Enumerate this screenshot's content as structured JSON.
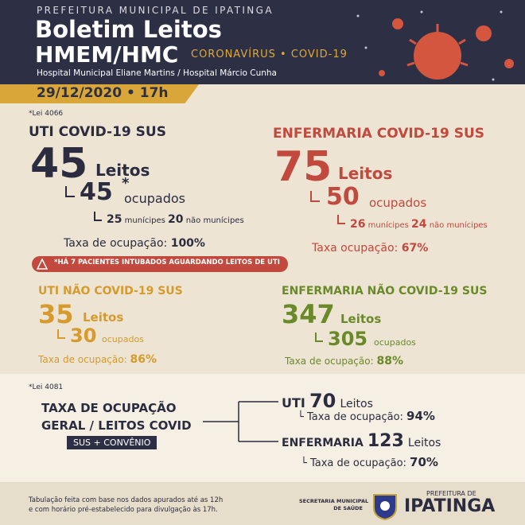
{
  "header": {
    "org": "PREFEITURA MUNICIPAL DE IPATINGA",
    "title": "Boletim Leitos",
    "subtitle": "HMEM/HMC",
    "tag": "CORONAVÍRUS • COVID-19",
    "hospitals": "Hospital Municipal Eliane Martins / Hospital Márcio Cunha",
    "date": "29/12/2020 • 17h"
  },
  "uti_covid": {
    "law": "*Lei 4066",
    "title": "UTI COVID-19 SUS",
    "beds": "45",
    "beds_label": "Leitos",
    "occupied": "45",
    "asterisk": "*",
    "occupied_label": "ocupados",
    "residents": "25",
    "residents_label": "munícipes",
    "non_residents": "20",
    "non_residents_label": "não munícipes",
    "rate_label": "Taxa de ocupação:",
    "rate": "100%",
    "alert": "*HÁ 7 PACIENTES INTUBADOS AGUARDANDO LEITOS DE UTI"
  },
  "enf_covid": {
    "title": "ENFERMARIA COVID-19 SUS",
    "beds": "75",
    "beds_label": "Leitos",
    "occupied": "50",
    "occupied_label": "ocupados",
    "residents": "26",
    "residents_label": "munícipes",
    "non_residents": "24",
    "non_residents_label": "não munícipes",
    "rate_label": "Taxa ocupação:",
    "rate": "67%"
  },
  "uti_nao": {
    "title": "UTI NÃO COVID-19 SUS",
    "beds": "35",
    "beds_label": "Leitos",
    "occupied": "30",
    "occupied_label": "ocupados",
    "rate_label": "Taxa de ocupação:",
    "rate": "86%"
  },
  "enf_nao": {
    "title": "ENFERMARIA NÃO COVID-19 SUS",
    "beds": "347",
    "beds_label": "Leitos",
    "occupied": "305",
    "occupied_label": "ocupados",
    "rate_label": "Taxa de ocupação:",
    "rate": "88%"
  },
  "geral": {
    "law": "*Lei 4081",
    "title_1": "TAXA DE OCUPAÇÃO",
    "title_2": "GERAL / LEITOS COVID",
    "badge": "SUS + CONVÊNIO",
    "uti": {
      "name": "UTI",
      "beds": "70",
      "beds_label": "Leitos",
      "rate_label": "Taxa de ocupação:",
      "rate": "94%"
    },
    "enfermaria": {
      "name": "ENFERMARIA",
      "beds": "123",
      "beds_label": "Leitos",
      "rate_label": "Taxa de ocupação:",
      "rate": "70%"
    }
  },
  "footer": {
    "note_1": "Tabulação feita com base nos dados apurados até as 12h",
    "note_2": "e com horário pré-estabelecido para divulgação às 17h.",
    "secretaria_1": "SECRETARIA MUNICIPAL",
    "secretaria_2": "DE SAÚDE",
    "prefeitura": "PREFEITURA DE",
    "city": "IPATINGA"
  }
}
